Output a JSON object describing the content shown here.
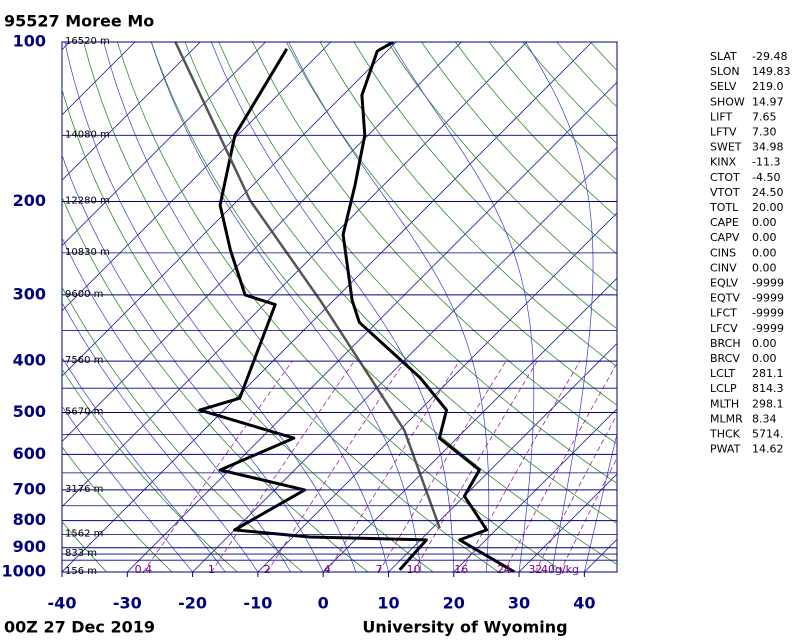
{
  "chart_data": {
    "type": "skewt",
    "title": "95527  Moree Mo",
    "footer_left": "00Z 27 Dec 2019",
    "footer_right": "University of Wyoming",
    "ylim": [
      1000,
      100
    ],
    "log_y": true,
    "yticks": [
      100,
      200,
      300,
      400,
      500,
      600,
      700,
      800,
      900,
      1000
    ],
    "minor_yticks": [
      150,
      250,
      350,
      450,
      550,
      650,
      750,
      850,
      925,
      950
    ],
    "xlim": [
      -40,
      45
    ],
    "xticks": [
      -40,
      -30,
      -20,
      -10,
      0,
      10,
      20,
      30,
      40
    ],
    "height_levels": [
      {
        "pressure": 100,
        "height": {
          "value": 16520,
          "label": "16520 m"
        }
      },
      {
        "pressure": 150,
        "height": {
          "value": 14080,
          "label": "14080 m"
        }
      },
      {
        "pressure": 200,
        "height": {
          "value": 12280,
          "label": "12280 m"
        }
      },
      {
        "pressure": 250,
        "height": {
          "value": 10830,
          "label": "10830 m"
        }
      },
      {
        "pressure": 300,
        "height": {
          "value": 9600,
          "label": "9600 m"
        }
      },
      {
        "pressure": 400,
        "height": {
          "value": 7560,
          "label": "7560 m"
        }
      },
      {
        "pressure": 500,
        "height": {
          "value": 5670,
          "label": "5670 m"
        }
      },
      {
        "pressure": 700,
        "height": {
          "value": 3176,
          "label": "3176 m"
        }
      },
      {
        "pressure": 850,
        "height": {
          "value": 1562,
          "label": "1562 m"
        }
      },
      {
        "pressure": 925,
        "height": {
          "value": 833,
          "label": "833 m"
        }
      },
      {
        "pressure": 1000,
        "height": {
          "value": 156,
          "label": "156 m"
        }
      }
    ],
    "mixing_ratios": [
      0.4,
      1,
      2,
      4,
      7,
      10,
      16,
      24,
      32,
      {
        "value": 40,
        "label": "40g/kg"
      }
    ],
    "series": [
      {
        "color": "#000000",
        "width": 3,
        "pressure": [
          1000,
          870,
          833,
          719,
          642,
          559,
          495,
          430,
          338,
          307,
          231,
          186,
          150,
          126,
          104,
          100
        ],
        "values": [
          29.3,
          16.0,
          18.6,
          10.0,
          8.3,
          -2.7,
          -5.9,
          -14.9,
          -32.7,
          -37.2,
          -48.6,
          -54.4,
          -60.5,
          -67.1,
          -71.5,
          -70.4
        ]
      },
      {
        "color": "#000000",
        "width": 3,
        "pressure": [
          991,
          870,
          859,
          833,
          700,
          642,
          559,
          495,
          470,
          313,
          300,
          247,
          203,
          150,
          103
        ],
        "values": [
          11.4,
          10.9,
          -7.4,
          -20.0,
          -15.4,
          -31.4,
          -25.0,
          -43.7,
          -39.4,
          -48.3,
          -54.4,
          -63.5,
          -72.0,
          -80.4,
          -85.7
        ]
      },
      {
        "color": "#555555",
        "width": 2.5,
        "pressure": [
          826,
          540,
          307,
          199,
          100
        ],
        "values": [
          11.1,
          -9.3,
          -42.1,
          -68.1,
          -103.8
        ]
      }
    ]
  },
  "indices": [
    {
      "name": "SLAT",
      "value": -29.48
    },
    {
      "name": "SLON",
      "value": 149.83
    },
    {
      "name": "SELV",
      "value": {
        "value": 219,
        "label": "219.0"
      }
    },
    {
      "name": "SHOW",
      "value": 14.97
    },
    {
      "name": "LIFT",
      "value": 7.65
    },
    {
      "name": "LFTV",
      "value": {
        "value": 7.3,
        "label": "7.30"
      }
    },
    {
      "name": "SWET",
      "value": 34.98
    },
    {
      "name": "KINX",
      "value": -11.3
    },
    {
      "name": "CTOT",
      "value": {
        "value": -4.5,
        "label": "-4.50"
      }
    },
    {
      "name": "VTOT",
      "value": {
        "value": 24.5,
        "label": "24.50"
      }
    },
    {
      "name": "TOTL",
      "value": {
        "value": 20,
        "label": "20.00"
      }
    },
    {
      "name": "CAPE",
      "value": {
        "value": 0,
        "label": "0.00"
      }
    },
    {
      "name": "CAPV",
      "value": {
        "value": 0,
        "label": "0.00"
      }
    },
    {
      "name": "CINS",
      "value": {
        "value": 0,
        "label": "0.00"
      }
    },
    {
      "name": "CINV",
      "value": {
        "value": 0,
        "label": "0.00"
      }
    },
    {
      "name": "EQLV",
      "value": -9999
    },
    {
      "name": "EQTV",
      "value": -9999
    },
    {
      "name": "LFCT",
      "value": -9999
    },
    {
      "name": "LFCV",
      "value": -9999
    },
    {
      "name": "BRCH",
      "value": {
        "value": 0,
        "label": "0.00"
      }
    },
    {
      "name": "BRCV",
      "value": {
        "value": 0,
        "label": "0.00"
      }
    },
    {
      "name": "LCLT",
      "value": 281.1
    },
    {
      "name": "LCLP",
      "value": 814.3
    },
    {
      "name": "MLTH",
      "value": 298.1
    },
    {
      "name": "MLMR",
      "value": 8.34
    },
    {
      "name": "THCK",
      "value": {
        "value": 5714,
        "label": "5714."
      }
    },
    {
      "name": "PWAT",
      "value": 14.62
    }
  ]
}
